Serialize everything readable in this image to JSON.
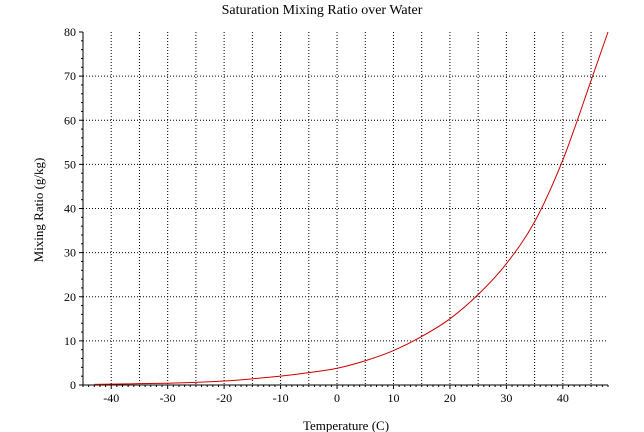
{
  "chart_data": {
    "type": "line",
    "title": "Saturation Mixing Ratio over Water",
    "xlabel": "Temperature (C)",
    "ylabel": "Mixing Ratio (g/kg)",
    "xlim": [
      -45,
      48
    ],
    "ylim": [
      0,
      80
    ],
    "grid": true,
    "grid_style": "dotted",
    "x_ticks": [
      -40,
      -30,
      -20,
      -10,
      0,
      10,
      20,
      30,
      40
    ],
    "y_ticks": [
      0,
      10,
      20,
      30,
      40,
      50,
      60,
      70,
      80
    ],
    "series": [
      {
        "color": "#cc0000",
        "x": [
          -43,
          -40,
          -35,
          -30,
          -25,
          -20,
          -15,
          -10,
          -5,
          0,
          5,
          10,
          15,
          20,
          25,
          30,
          35,
          40,
          45,
          48
        ],
        "y": [
          0.15,
          0.2,
          0.3,
          0.4,
          0.6,
          0.9,
          1.4,
          2.0,
          2.8,
          3.8,
          5.5,
          7.8,
          11.0,
          15.0,
          20.5,
          27.5,
          37.0,
          51.0,
          69.0,
          80.0
        ]
      }
    ]
  }
}
